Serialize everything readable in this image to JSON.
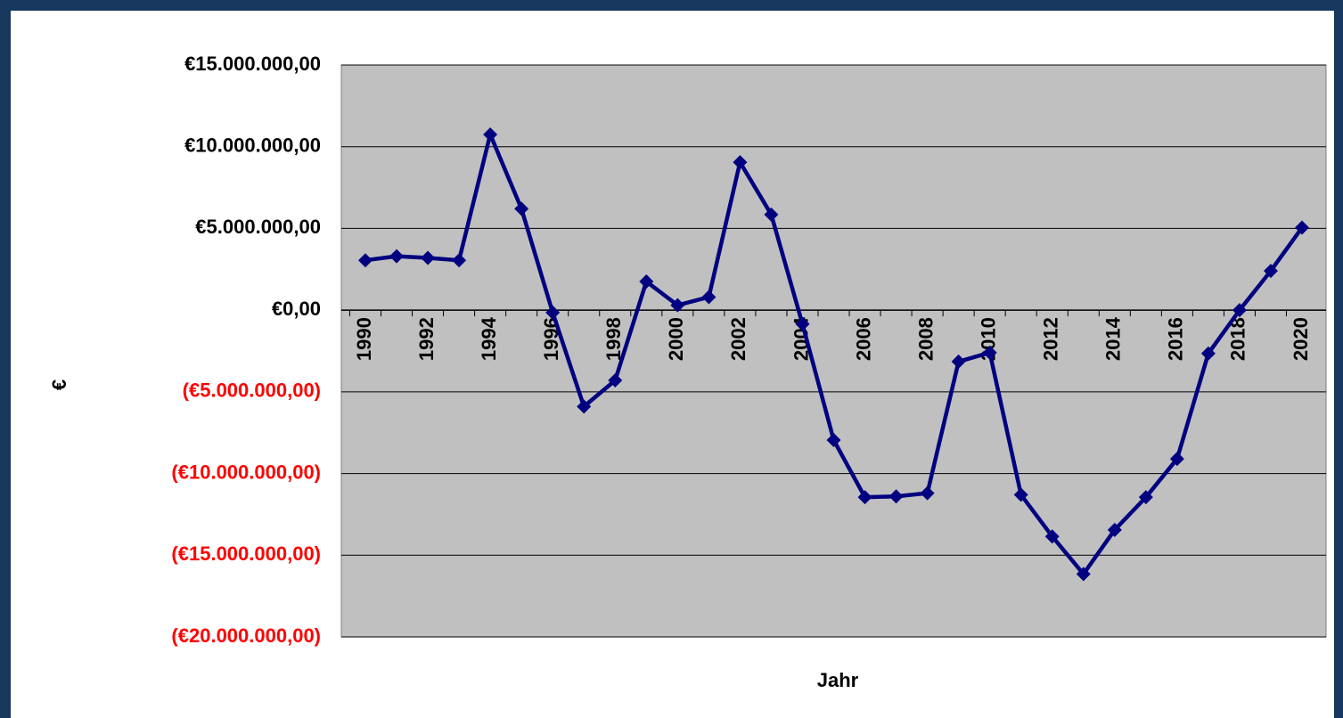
{
  "chart_data": {
    "type": "line",
    "x_label": "Jahr",
    "y_label": "€",
    "categories": [
      "1990",
      null,
      "1992",
      null,
      "1994",
      null,
      "1996",
      null,
      "1998",
      null,
      "2000",
      null,
      "2002",
      null,
      "2004",
      null,
      "2006",
      null,
      "2008",
      null,
      "2010",
      null,
      "2012",
      null,
      "2014",
      null,
      "2016",
      null,
      "2018",
      null,
      "2020"
    ],
    "series": [
      {
        "name": "€",
        "color": "#000080",
        "values": [
          3050000,
          3300000,
          3200000,
          3050000,
          10750000,
          6200000,
          -150000,
          -5900000,
          -4300000,
          1750000,
          300000,
          800000,
          9050000,
          5850000,
          -850000,
          -7950000,
          -11450000,
          -11400000,
          -11200000,
          -3150000,
          -2600000,
          -11300000,
          -13850000,
          -16150000,
          -13450000,
          -11450000,
          -9100000,
          -2650000,
          0,
          2400000,
          5050000
        ]
      }
    ],
    "ylim": [
      -20000000,
      15000000
    ],
    "yticks": [
      {
        "value": -20000000,
        "label": "(€20.000.000,00)"
      },
      {
        "value": -15000000,
        "label": "(€15.000.000,00)"
      },
      {
        "value": -10000000,
        "label": "(€10.000.000,00)"
      },
      {
        "value": -5000000,
        "label": "(€5.000.000,00)"
      },
      {
        "value": 0,
        "label": "€0,00"
      },
      {
        "value": 5000000,
        "label": "€5.000.000,00"
      },
      {
        "value": 10000000,
        "label": "€10.000.000,00"
      },
      {
        "value": 15000000,
        "label": "€15.000.000,00"
      }
    ],
    "grid": true,
    "negative_tick_color": "#ff0000",
    "plot_background": "#c0c0c0"
  }
}
